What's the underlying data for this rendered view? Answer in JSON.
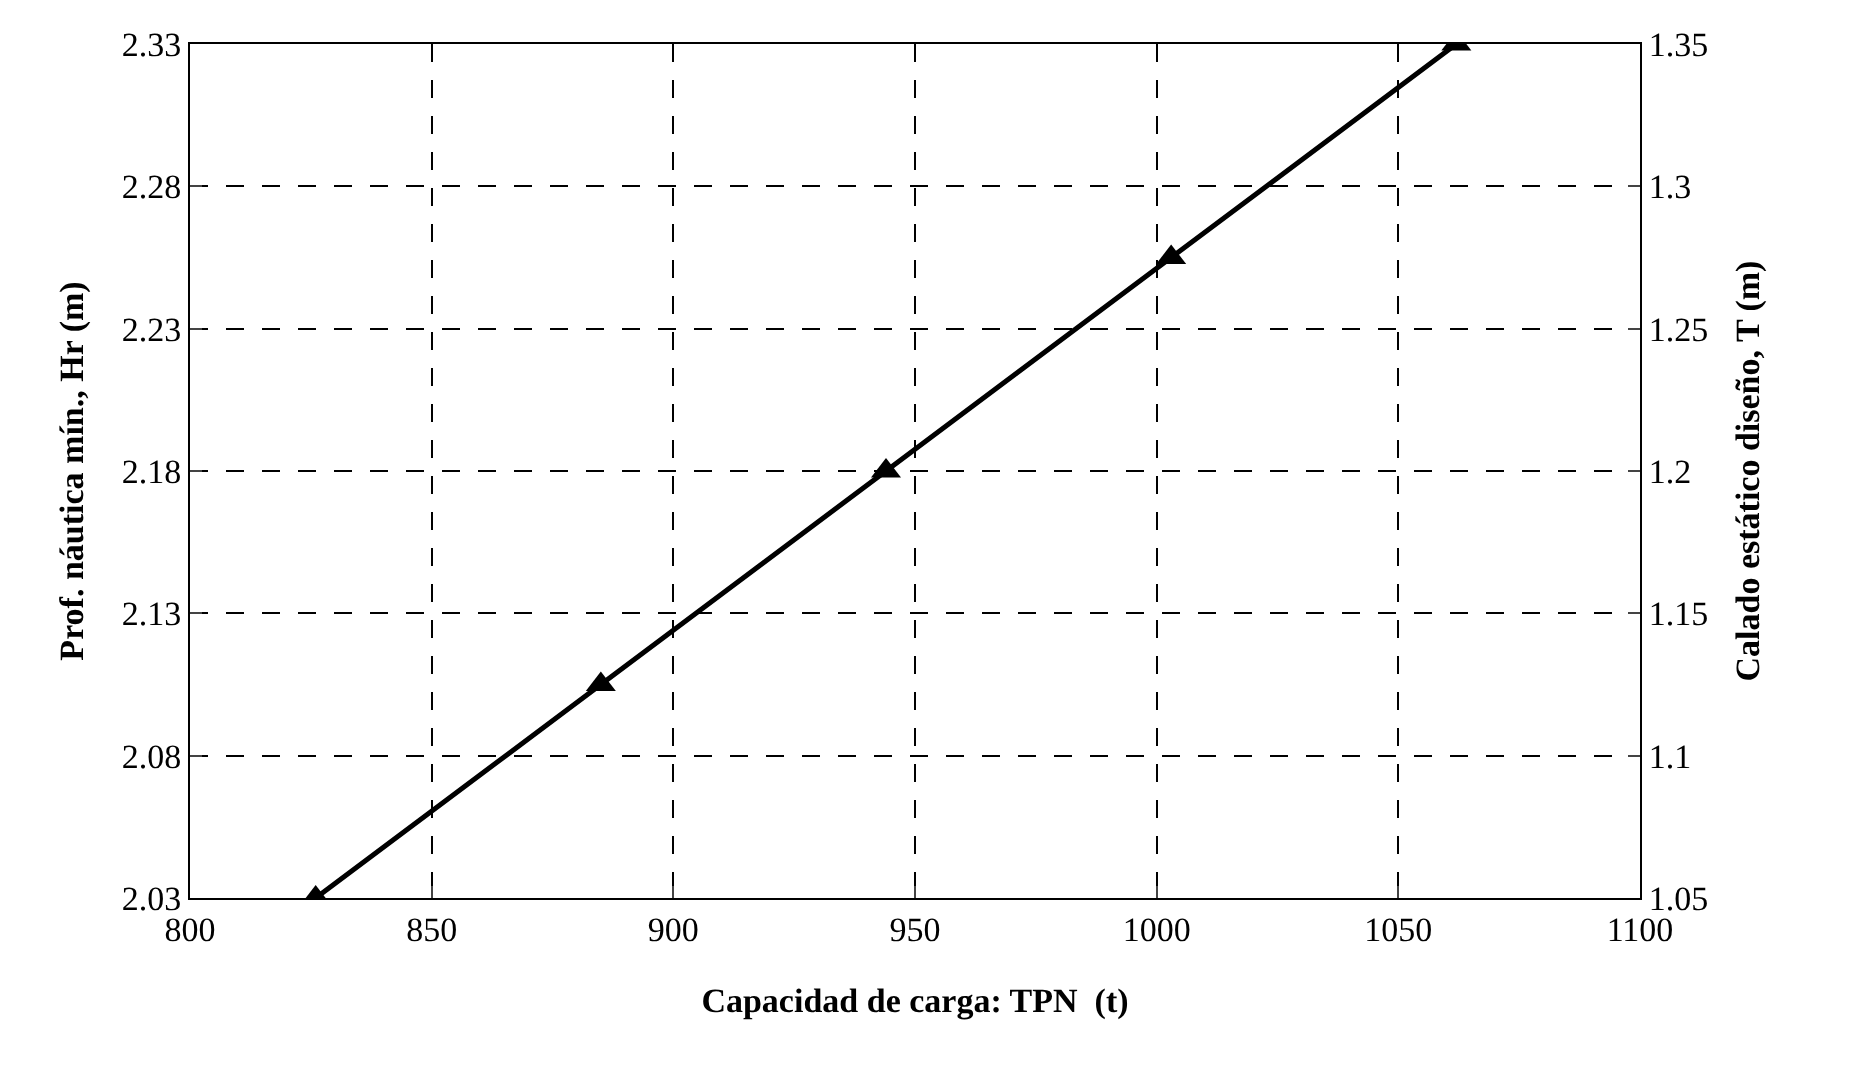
{
  "chart_data": {
    "type": "line",
    "xlabel": "Capacidad de carga: TPN  (t)",
    "ylabel": "Prof. náutica mín., Hr (m)",
    "y2label": "Calado estático diseño, T (m)",
    "x": [
      826,
      885,
      944,
      1003,
      1062
    ],
    "series": [
      {
        "color": "#000000",
        "values": [
          2.03,
          2.105,
          2.18,
          2.255,
          2.33
        ]
      }
    ],
    "xlim": [
      800,
      1100
    ],
    "xticks": [
      800,
      850,
      900,
      950,
      1000,
      1050,
      1100
    ],
    "ylim": [
      2.03,
      2.33
    ],
    "yticks": [
      2.03,
      2.08,
      2.13,
      2.18,
      2.23,
      2.28,
      2.33
    ],
    "y2lim": [
      1.05,
      1.35
    ],
    "y2ticks": [
      1.05,
      1.1,
      1.15,
      1.2,
      1.25,
      1.3,
      1.35
    ],
    "grid": true,
    "marker": "triangle",
    "line_style": "solid"
  }
}
